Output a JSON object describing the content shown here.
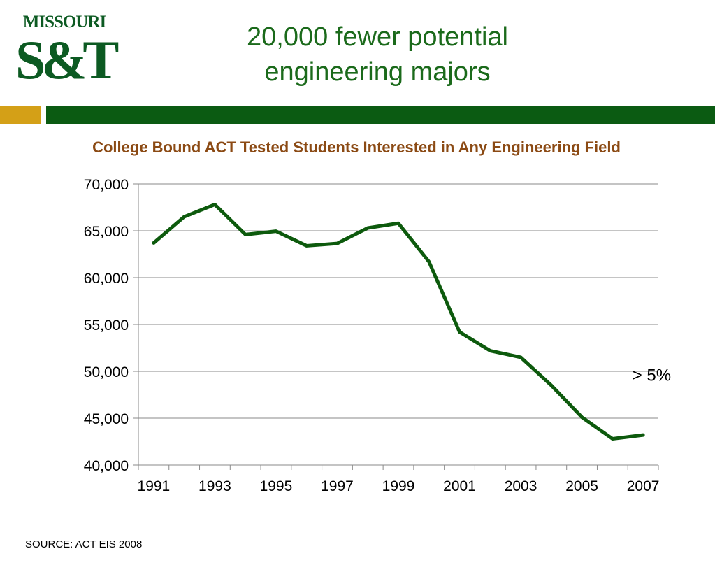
{
  "logo": {
    "top_text": "MISSOURI",
    "bottom_text": "S&T"
  },
  "slide_title": {
    "line1": "20,000 fewer potential",
    "line2": "engineering majors"
  },
  "source": "SOURCE: ACT EIS 2008",
  "colors": {
    "line": "#0d5a0d",
    "title": "#1b6a1b",
    "subtitle": "#8b4a14",
    "gold_band": "#d4a017",
    "green_band": "#0b5b12"
  },
  "chart_data": {
    "type": "line",
    "title": "College Bound ACT Tested Students Interested in Any Engineering Field",
    "xlabel": "",
    "ylabel": "",
    "x": [
      1991,
      1992,
      1993,
      1994,
      1995,
      1996,
      1997,
      1998,
      1999,
      2000,
      2001,
      2002,
      2003,
      2004,
      2005,
      2006,
      2007
    ],
    "x_tick_labels": [
      "1991",
      "1993",
      "1995",
      "1997",
      "1999",
      "2001",
      "2003",
      "2005",
      "2007"
    ],
    "y_tick_labels": [
      "70,000",
      "65,000",
      "60,000",
      "55,000",
      "50,000",
      "45,000",
      "40,000"
    ],
    "ylim": [
      40000,
      70000
    ],
    "grid": true,
    "series": [
      {
        "values": [
          63700,
          66500,
          67800,
          64600,
          64950,
          63400,
          63650,
          65300,
          65800,
          61700,
          54200,
          52200,
          51500,
          48500,
          45100,
          42800,
          43200
        ]
      }
    ],
    "annotations": [
      {
        "text": "> 5%",
        "x": 2007,
        "y": 49000
      }
    ]
  }
}
